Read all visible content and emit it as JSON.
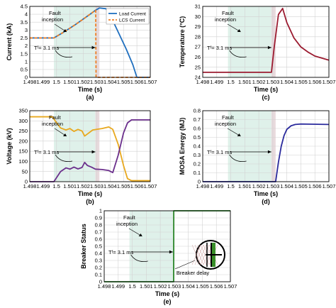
{
  "chart_data": [
    {
      "id": "a",
      "type": "line",
      "panel_label": "(a)",
      "xlabel": "Time (s)",
      "ylabel": "Current (kA)",
      "xlim": [
        1.498,
        1.507
      ],
      "ylim": [
        0,
        4.5
      ],
      "xticks": [
        "1.498",
        "1.499",
        "1.5",
        "1.501",
        "1.502",
        "1.503",
        "1.504",
        "1.505",
        "1.506",
        "1.507"
      ],
      "yticks": [
        "0",
        "0.5",
        "1",
        "1.5",
        "2",
        "2.5",
        "3",
        "3.5",
        "4",
        "4.5"
      ],
      "grid": true,
      "shade": [
        1.4998,
        1.5029
      ],
      "shade2": [
        1.5029,
        1.5032
      ],
      "legend": "top-right",
      "annotations": {
        "fault": "Fault",
        "fault2": "inception",
        "tf": "Tᶠ= 3.1 ms"
      },
      "series": [
        {
          "name": "Load Current",
          "color": "#1f6fbf",
          "dash": false,
          "x": [
            1.498,
            1.4998,
            1.5005,
            1.501,
            1.5015,
            1.502,
            1.5025,
            1.5029,
            1.5032,
            1.5037,
            1.5042,
            1.5047,
            1.5052,
            1.5057,
            1.506,
            1.507
          ],
          "y": [
            2.5,
            2.5,
            2.85,
            3.12,
            3.4,
            3.7,
            4.0,
            4.25,
            4.4,
            4.35,
            3.6,
            2.7,
            1.8,
            0.8,
            0.0,
            0.0
          ]
        },
        {
          "name": "LCS Current",
          "color": "#f07f24",
          "dash": true,
          "x": [
            1.498,
            1.4998,
            1.5005,
            1.501,
            1.5015,
            1.502,
            1.5025,
            1.5029,
            1.50292,
            1.50295,
            1.507
          ],
          "y": [
            2.5,
            2.5,
            2.85,
            3.12,
            3.4,
            3.7,
            4.0,
            4.25,
            4.25,
            0.0,
            0.0
          ]
        }
      ]
    },
    {
      "id": "b",
      "type": "line",
      "panel_label": "(b)",
      "xlabel": "Time (s)",
      "ylabel": "Voltage (kV)",
      "xlim": [
        1.498,
        1.507
      ],
      "ylim": [
        0,
        350
      ],
      "xticks": [
        "1.498",
        "1.499",
        "1.5",
        "1.501",
        "1.502",
        "1.503",
        "1.504",
        "1.505",
        "1.506",
        "1.507"
      ],
      "yticks": [
        "0",
        "50",
        "100",
        "150",
        "200",
        "250",
        "300",
        "350"
      ],
      "grid": true,
      "shade": [
        1.4998,
        1.5029
      ],
      "shade2": [
        1.5029,
        1.5032
      ],
      "annotations": {
        "fault": "Fault",
        "fault2": "inception",
        "tf": "Tᶠ= 3.1 ms"
      },
      "series": [
        {
          "name": "",
          "color": "#e8a81e",
          "dash": false,
          "x": [
            1.498,
            1.4997,
            1.4999,
            1.5003,
            1.5007,
            1.501,
            1.5013,
            1.5016,
            1.5019,
            1.5021,
            1.5024,
            1.5027,
            1.503,
            1.5034,
            1.5039,
            1.5042,
            1.5046,
            1.505,
            1.5053,
            1.5056,
            1.507
          ],
          "y": [
            320,
            320,
            300,
            265,
            255,
            262,
            248,
            258,
            250,
            225,
            240,
            255,
            258,
            262,
            270,
            258,
            185,
            80,
            15,
            5,
            5
          ]
        },
        {
          "name": "",
          "color": "#6b2f8c",
          "dash": false,
          "x": [
            1.498,
            1.4998,
            1.5003,
            1.5007,
            1.501,
            1.5013,
            1.5016,
            1.5019,
            1.5021,
            1.5023,
            1.5026,
            1.5029,
            1.5034,
            1.5039,
            1.5042,
            1.5046,
            1.505,
            1.5053,
            1.5056,
            1.507
          ],
          "y": [
            0,
            0,
            50,
            68,
            62,
            72,
            63,
            70,
            95,
            80,
            72,
            62,
            60,
            55,
            45,
            130,
            240,
            290,
            305,
            305
          ]
        }
      ]
    },
    {
      "id": "c",
      "type": "line",
      "panel_label": "(c)",
      "xlabel": "Time (s)",
      "ylabel": "Temperature (°C)",
      "xlim": [
        1.498,
        1.507
      ],
      "ylim": [
        24,
        31
      ],
      "xticks": [
        "1.498",
        "1.499",
        "1.5",
        "1.501",
        "1.502",
        "1.503",
        "1.504",
        "1.505",
        "1.506",
        "1.507"
      ],
      "yticks": [
        "24",
        "25",
        "26",
        "27",
        "28",
        "29",
        "30",
        "31"
      ],
      "grid": true,
      "shade": [
        1.4998,
        1.5029
      ],
      "shade2": [
        1.5029,
        1.5032
      ],
      "annotations": {
        "fault": "Fault",
        "fault2": "inception",
        "tf": "Tᶠ= 3.1 ms"
      },
      "series": [
        {
          "name": "",
          "color": "#9b1b30",
          "dash": false,
          "x": [
            1.498,
            1.5029,
            1.5031,
            1.5034,
            1.5037,
            1.504,
            1.5045,
            1.505,
            1.5055,
            1.506,
            1.5065,
            1.507
          ],
          "y": [
            24.5,
            24.5,
            27.0,
            30.2,
            30.8,
            29.4,
            27.9,
            27.0,
            26.5,
            26.1,
            25.9,
            25.7
          ]
        }
      ]
    },
    {
      "id": "d",
      "type": "line",
      "panel_label": "(d)",
      "xlabel": "Time (s)",
      "ylabel": "MOSA Energy (MJ)",
      "xlim": [
        1.498,
        1.507
      ],
      "ylim": [
        0,
        0.8
      ],
      "xticks": [
        "1.498",
        "1.499",
        "1.5",
        "1.501",
        "1.502",
        "1.503",
        "1.504",
        "1.505",
        "1.506",
        "1.507"
      ],
      "yticks": [
        "0",
        "0.1",
        "0.2",
        "0.3",
        "0.4",
        "0.5",
        "0.6",
        "0.7",
        "0.8"
      ],
      "grid": true,
      "shade": [
        1.4998,
        1.5029
      ],
      "shade2": [
        1.5029,
        1.5032
      ],
      "annotations": {
        "fault": "Fault",
        "fault2": "inception",
        "tf": "Tᶠ= 3.1 ms"
      },
      "series": [
        {
          "name": "",
          "color": "#2a2a9c",
          "dash": false,
          "x": [
            1.498,
            1.5032,
            1.5034,
            1.5036,
            1.5038,
            1.504,
            1.5043,
            1.5046,
            1.505,
            1.507
          ],
          "y": [
            0,
            0,
            0.22,
            0.4,
            0.52,
            0.59,
            0.63,
            0.645,
            0.65,
            0.645
          ]
        }
      ]
    },
    {
      "id": "e",
      "type": "line",
      "panel_label": "(e)",
      "xlabel": "Time (s)",
      "ylabel": "Breaker Status",
      "xlim": [
        1.498,
        1.507
      ],
      "ylim": [
        0,
        1
      ],
      "xticks": [
        "1.498",
        "1.499",
        "1.5",
        "1.501",
        "1.502",
        "1.503",
        "1.504",
        "1.505",
        "1.506",
        "1.507"
      ],
      "yticks": [
        "0",
        "0.1",
        "0.2",
        "0.3",
        "0.4",
        "0.5",
        "0.6",
        "0.7",
        "0.8",
        "0.9",
        "1"
      ],
      "grid": true,
      "shade": [
        1.4998,
        1.5029
      ],
      "shade2": [
        1.5029,
        1.503
      ],
      "annotations": {
        "fault": "Fault",
        "fault2": "inception",
        "tf": "Tᶠ= 3.1 ms",
        "delay": "Breaker delay"
      },
      "series": [
        {
          "name": "",
          "color": "#2e8b2e",
          "dash": false,
          "x": [
            1.498,
            1.50295,
            1.50296,
            1.507
          ],
          "y": [
            0,
            0,
            1,
            1
          ]
        }
      ]
    }
  ]
}
